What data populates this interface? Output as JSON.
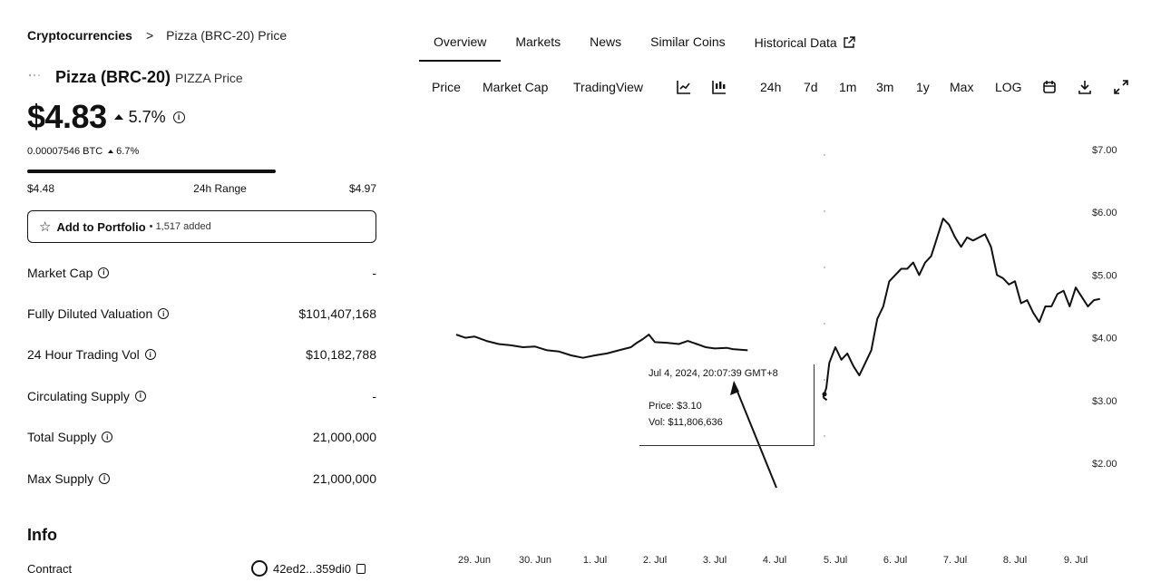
{
  "breadcrumb": {
    "root": "Cryptocurrencies",
    "separator": ">",
    "current": "Pizza (BRC-20) Price"
  },
  "coin": {
    "name": "Pizza (BRC-20)",
    "symbol": "PIZZA Price",
    "logo_icon": "pizza-logo-icon"
  },
  "price": {
    "value": "$4.83",
    "change": "5.7%",
    "change_direction": "up",
    "btc_value": "0.00007546 BTC",
    "btc_change": "6.7%"
  },
  "range": {
    "low": "$4.48",
    "label": "24h Range",
    "high": "$4.97",
    "position_fraction": 0.71
  },
  "portfolio": {
    "label": "Add to Portfolio",
    "added": "• 1,517 added"
  },
  "stats": [
    {
      "label": "Market Cap",
      "value": "-"
    },
    {
      "label": "Fully Diluted Valuation",
      "value": "$101,407,168"
    },
    {
      "label": "24 Hour Trading Vol",
      "value": "$10,182,788"
    },
    {
      "label": "Circulating Supply",
      "value": "-"
    },
    {
      "label": "Total Supply",
      "value": "21,000,000"
    },
    {
      "label": "Max Supply",
      "value": "21,000,000"
    }
  ],
  "info": {
    "heading": "Info",
    "contract_label": "Contract",
    "contract_value": "42ed2...359di0"
  },
  "tabs": [
    {
      "label": "Overview",
      "active": true
    },
    {
      "label": "Markets",
      "active": false
    },
    {
      "label": "News",
      "active": false
    },
    {
      "label": "Similar Coins",
      "active": false
    },
    {
      "label": "Historical Data",
      "active": false
    }
  ],
  "toolbar": {
    "price": "Price",
    "market_cap": "Market Cap",
    "tradingview": "TradingView",
    "ranges": [
      "24h",
      "7d",
      "1m",
      "3m",
      "1y",
      "Max"
    ],
    "log": "LOG",
    "icons": [
      "line-chart-icon",
      "candlestick-icon",
      "calendar-icon",
      "download-icon",
      "fullscreen-icon"
    ]
  },
  "tooltip": {
    "time": "Jul 4, 2024, 20:07:39 GMT+8",
    "price": "Price: $3.10",
    "vol": "Vol: $11,806,636"
  },
  "chart_data": {
    "type": "line",
    "title": "",
    "xlabel": "",
    "ylabel": "",
    "x_ticks": [
      "29. Jun",
      "30. Jun",
      "1. Jul",
      "2. Jul",
      "3. Jul",
      "4. Jul",
      "5. Jul",
      "6. Jul",
      "7. Jul",
      "8. Jul",
      "9. Jul"
    ],
    "y_ticks": [
      "$7.00",
      "$6.00",
      "$5.00",
      "$4.00",
      "$3.00",
      "$2.00"
    ],
    "ylim": [
      2.0,
      7.0
    ],
    "x_range_days": [
      28.25,
      9.45
    ],
    "series": [
      {
        "color": "#111111",
        "points": [
          [
            28.7,
            4.05
          ],
          [
            28.85,
            4.0
          ],
          [
            29.0,
            4.02
          ],
          [
            29.2,
            3.95
          ],
          [
            29.4,
            3.9
          ],
          [
            29.6,
            3.88
          ],
          [
            29.8,
            3.85
          ],
          [
            30.0,
            3.86
          ],
          [
            30.2,
            3.8
          ],
          [
            30.4,
            3.78
          ],
          [
            30.6,
            3.72
          ],
          [
            30.8,
            3.68
          ],
          [
            31.0,
            3.72
          ],
          [
            31.2,
            3.75
          ],
          [
            31.4,
            3.8
          ],
          [
            31.6,
            3.85
          ],
          [
            31.7,
            3.92
          ],
          [
            31.8,
            3.98
          ],
          [
            31.9,
            4.05
          ],
          [
            32.0,
            3.93
          ],
          [
            32.2,
            3.92
          ],
          [
            32.4,
            3.9
          ],
          [
            32.55,
            3.95
          ],
          [
            32.7,
            3.9
          ],
          [
            32.85,
            3.85
          ],
          [
            33.0,
            3.83
          ],
          [
            33.2,
            3.84
          ],
          [
            33.3,
            3.82
          ],
          [
            33.55,
            3.8
          ],
          [
            34.8,
            3.05
          ],
          [
            34.85,
            3.2
          ],
          [
            34.9,
            3.6
          ],
          [
            35.0,
            3.85
          ],
          [
            35.1,
            3.65
          ],
          [
            35.2,
            3.75
          ],
          [
            35.3,
            3.55
          ],
          [
            35.4,
            3.4
          ],
          [
            35.5,
            3.6
          ],
          [
            35.6,
            3.8
          ],
          [
            35.7,
            4.3
          ],
          [
            35.8,
            4.5
          ],
          [
            35.9,
            4.9
          ],
          [
            36.0,
            5.0
          ],
          [
            36.1,
            5.1
          ],
          [
            36.2,
            5.1
          ],
          [
            36.3,
            5.2
          ],
          [
            36.4,
            5.0
          ],
          [
            36.5,
            5.2
          ],
          [
            36.6,
            5.3
          ],
          [
            36.7,
            5.6
          ],
          [
            36.8,
            5.9
          ],
          [
            36.9,
            5.8
          ],
          [
            37.0,
            5.6
          ],
          [
            37.1,
            5.45
          ],
          [
            37.2,
            5.6
          ],
          [
            37.3,
            5.55
          ],
          [
            37.4,
            5.6
          ],
          [
            37.5,
            5.65
          ],
          [
            37.6,
            5.45
          ],
          [
            37.7,
            5.0
          ],
          [
            37.8,
            4.95
          ],
          [
            37.9,
            4.85
          ],
          [
            38.0,
            4.9
          ],
          [
            38.1,
            4.55
          ],
          [
            38.2,
            4.6
          ],
          [
            38.3,
            4.4
          ],
          [
            38.4,
            4.25
          ],
          [
            38.5,
            4.5
          ],
          [
            38.6,
            4.5
          ],
          [
            38.7,
            4.7
          ],
          [
            38.8,
            4.75
          ],
          [
            38.9,
            4.5
          ],
          [
            39.0,
            4.8
          ],
          [
            39.1,
            4.65
          ],
          [
            39.2,
            4.5
          ],
          [
            39.3,
            4.6
          ],
          [
            39.4,
            4.62
          ]
        ]
      }
    ],
    "grid": false,
    "crosshair_date": "Jul 4, 2024"
  }
}
